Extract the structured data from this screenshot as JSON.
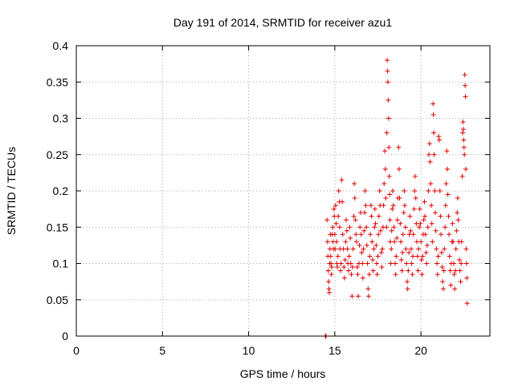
{
  "chart_data": {
    "type": "scatter",
    "title": "Day 191 of 2014, SRMTID for receiver azu1",
    "xlabel": "GPS time / hours",
    "ylabel": "SRMTID / TECUs",
    "xlim": [
      0,
      24
    ],
    "ylim": [
      0,
      0.4
    ],
    "xticks": [
      0,
      5,
      10,
      15,
      20
    ],
    "xtick_labels": [
      "0",
      "5",
      "10",
      "15",
      "20"
    ],
    "yticks": [
      0,
      0.05,
      0.1,
      0.15,
      0.2,
      0.25,
      0.3,
      0.35,
      0.4
    ],
    "ytick_labels": [
      "0",
      "0.05",
      "0.1",
      "0.15",
      "0.2",
      "0.25",
      "0.3",
      "0.35",
      "0.4"
    ],
    "grid": true,
    "marker": "+",
    "color": "#e00000",
    "series": [
      {
        "name": "SRMTID",
        "points": [
          [
            14.45,
            0.0
          ],
          [
            14.47,
            0.0
          ],
          [
            14.49,
            0.0
          ],
          [
            14.55,
            0.16
          ],
          [
            14.58,
            0.13
          ],
          [
            14.6,
            0.11
          ],
          [
            14.62,
            0.09
          ],
          [
            14.64,
            0.075
          ],
          [
            14.66,
            0.065
          ],
          [
            14.68,
            0.06
          ],
          [
            14.7,
            0.1
          ],
          [
            14.72,
            0.12
          ],
          [
            14.74,
            0.14
          ],
          [
            14.76,
            0.11
          ],
          [
            14.78,
            0.1
          ],
          [
            14.8,
            0.085
          ],
          [
            14.82,
            0.095
          ],
          [
            14.85,
            0.14
          ],
          [
            14.88,
            0.15
          ],
          [
            14.9,
            0.13
          ],
          [
            14.92,
            0.12
          ],
          [
            14.95,
            0.175
          ],
          [
            14.97,
            0.165
          ],
          [
            15.0,
            0.14
          ],
          [
            15.02,
            0.12
          ],
          [
            15.05,
            0.18
          ],
          [
            15.08,
            0.155
          ],
          [
            15.1,
            0.13
          ],
          [
            15.12,
            0.1
          ],
          [
            15.15,
            0.095
          ],
          [
            15.18,
            0.11
          ],
          [
            15.2,
            0.165
          ],
          [
            15.23,
            0.2
          ],
          [
            15.26,
            0.185
          ],
          [
            15.28,
            0.15
          ],
          [
            15.3,
            0.12
          ],
          [
            15.33,
            0.09
          ],
          [
            15.36,
            0.1
          ],
          [
            15.4,
            0.215
          ],
          [
            15.43,
            0.185
          ],
          [
            15.46,
            0.14
          ],
          [
            15.5,
            0.12
          ],
          [
            15.53,
            0.095
          ],
          [
            15.56,
            0.08
          ],
          [
            15.6,
            0.105
          ],
          [
            15.63,
            0.13
          ],
          [
            15.66,
            0.16
          ],
          [
            15.7,
            0.145
          ],
          [
            15.73,
            0.12
          ],
          [
            15.76,
            0.1
          ],
          [
            15.8,
            0.09
          ],
          [
            15.83,
            0.11
          ],
          [
            15.86,
            0.15
          ],
          [
            15.9,
            0.135
          ],
          [
            15.93,
            0.1
          ],
          [
            15.96,
            0.085
          ],
          [
            16.0,
            0.055
          ],
          [
            16.03,
            0.095
          ],
          [
            16.06,
            0.12
          ],
          [
            16.1,
            0.165
          ],
          [
            16.13,
            0.21
          ],
          [
            16.16,
            0.19
          ],
          [
            16.2,
            0.16
          ],
          [
            16.23,
            0.14
          ],
          [
            16.26,
            0.13
          ],
          [
            16.3,
            0.095
          ],
          [
            16.33,
            0.085
          ],
          [
            16.36,
            0.055
          ],
          [
            16.4,
            0.1
          ],
          [
            16.43,
            0.125
          ],
          [
            16.46,
            0.15
          ],
          [
            16.5,
            0.17
          ],
          [
            16.53,
            0.14
          ],
          [
            16.56,
            0.115
          ],
          [
            16.6,
            0.1
          ],
          [
            16.63,
            0.08
          ],
          [
            16.66,
            0.12
          ],
          [
            16.7,
            0.145
          ],
          [
            16.73,
            0.17
          ],
          [
            16.76,
            0.2
          ],
          [
            16.8,
            0.18
          ],
          [
            16.83,
            0.15
          ],
          [
            16.86,
            0.125
          ],
          [
            16.9,
            0.1
          ],
          [
            16.93,
            0.065
          ],
          [
            16.96,
            0.055
          ],
          [
            17.0,
            0.085
          ],
          [
            17.03,
            0.11
          ],
          [
            17.06,
            0.14
          ],
          [
            17.1,
            0.18
          ],
          [
            17.13,
            0.165
          ],
          [
            17.16,
            0.13
          ],
          [
            17.2,
            0.105
          ],
          [
            17.23,
            0.09
          ],
          [
            17.26,
            0.12
          ],
          [
            17.3,
            0.15
          ],
          [
            17.33,
            0.175
          ],
          [
            17.36,
            0.155
          ],
          [
            17.4,
            0.125
          ],
          [
            17.43,
            0.1
          ],
          [
            17.46,
            0.085
          ],
          [
            17.5,
            0.11
          ],
          [
            17.53,
            0.14
          ],
          [
            17.56,
            0.165
          ],
          [
            17.6,
            0.2
          ],
          [
            17.63,
            0.18
          ],
          [
            17.66,
            0.145
          ],
          [
            17.7,
            0.115
          ],
          [
            17.73,
            0.095
          ],
          [
            17.76,
            0.12
          ],
          [
            17.8,
            0.15
          ],
          [
            17.83,
            0.18
          ],
          [
            17.86,
            0.21
          ],
          [
            17.9,
            0.255
          ],
          [
            17.93,
            0.23
          ],
          [
            17.96,
            0.19
          ],
          [
            18.0,
            0.15
          ],
          [
            18.02,
            0.28
          ],
          [
            18.04,
            0.38
          ],
          [
            18.06,
            0.365
          ],
          [
            18.08,
            0.35
          ],
          [
            18.1,
            0.325
          ],
          [
            18.12,
            0.3
          ],
          [
            18.14,
            0.26
          ],
          [
            18.16,
            0.22
          ],
          [
            18.18,
            0.195
          ],
          [
            18.2,
            0.16
          ],
          [
            18.22,
            0.13
          ],
          [
            18.25,
            0.1
          ],
          [
            18.28,
            0.12
          ],
          [
            18.3,
            0.145
          ],
          [
            18.33,
            0.175
          ],
          [
            18.36,
            0.2
          ],
          [
            18.4,
            0.18
          ],
          [
            18.43,
            0.15
          ],
          [
            18.46,
            0.13
          ],
          [
            18.5,
            0.1
          ],
          [
            18.53,
            0.085
          ],
          [
            18.56,
            0.11
          ],
          [
            18.6,
            0.135
          ],
          [
            18.63,
            0.16
          ],
          [
            18.66,
            0.19
          ],
          [
            18.7,
            0.26
          ],
          [
            18.73,
            0.23
          ],
          [
            18.76,
            0.19
          ],
          [
            18.8,
            0.155
          ],
          [
            18.83,
            0.13
          ],
          [
            18.86,
            0.105
          ],
          [
            18.9,
            0.09
          ],
          [
            18.93,
            0.115
          ],
          [
            18.96,
            0.14
          ],
          [
            19.0,
            0.17
          ],
          [
            19.03,
            0.2
          ],
          [
            19.06,
            0.18
          ],
          [
            19.1,
            0.15
          ],
          [
            19.13,
            0.12
          ],
          [
            19.16,
            0.1
          ],
          [
            19.2,
            0.075
          ],
          [
            19.23,
            0.065
          ],
          [
            19.26,
            0.09
          ],
          [
            19.3,
            0.115
          ],
          [
            19.33,
            0.14
          ],
          [
            19.36,
            0.165
          ],
          [
            19.4,
            0.145
          ],
          [
            19.43,
            0.12
          ],
          [
            19.46,
            0.1
          ],
          [
            19.5,
            0.085
          ],
          [
            19.53,
            0.11
          ],
          [
            19.56,
            0.14
          ],
          [
            19.6,
            0.175
          ],
          [
            19.63,
            0.2
          ],
          [
            19.66,
            0.22
          ],
          [
            19.7,
            0.19
          ],
          [
            19.73,
            0.155
          ],
          [
            19.76,
            0.13
          ],
          [
            19.8,
            0.11
          ],
          [
            19.83,
            0.09
          ],
          [
            19.86,
            0.12
          ],
          [
            19.9,
            0.15
          ],
          [
            19.93,
            0.175
          ],
          [
            19.96,
            0.155
          ],
          [
            20.0,
            0.13
          ],
          [
            20.03,
            0.105
          ],
          [
            20.06,
            0.085
          ],
          [
            20.1,
            0.11
          ],
          [
            20.13,
            0.14
          ],
          [
            20.16,
            0.16
          ],
          [
            20.2,
            0.185
          ],
          [
            20.23,
            0.165
          ],
          [
            20.26,
            0.14
          ],
          [
            20.3,
            0.115
          ],
          [
            20.33,
            0.1
          ],
          [
            20.36,
            0.125
          ],
          [
            20.4,
            0.15
          ],
          [
            20.43,
            0.2
          ],
          [
            20.46,
            0.25
          ],
          [
            20.5,
            0.265
          ],
          [
            20.53,
            0.24
          ],
          [
            20.56,
            0.21
          ],
          [
            20.6,
            0.18
          ],
          [
            20.63,
            0.155
          ],
          [
            20.66,
            0.13
          ],
          [
            20.7,
            0.32
          ],
          [
            20.72,
            0.305
          ],
          [
            20.74,
            0.28
          ],
          [
            20.76,
            0.25
          ],
          [
            20.8,
            0.2
          ],
          [
            20.83,
            0.17
          ],
          [
            20.86,
            0.145
          ],
          [
            20.9,
            0.12
          ],
          [
            20.93,
            0.1
          ],
          [
            20.96,
            0.085
          ],
          [
            21.0,
            0.11
          ],
          [
            21.03,
            0.275
          ],
          [
            21.06,
            0.27
          ],
          [
            21.1,
            0.2
          ],
          [
            21.13,
            0.165
          ],
          [
            21.16,
            0.14
          ],
          [
            21.2,
            0.115
          ],
          [
            21.23,
            0.095
          ],
          [
            21.26,
            0.075
          ],
          [
            21.3,
            0.065
          ],
          [
            21.33,
            0.09
          ],
          [
            21.36,
            0.12
          ],
          [
            21.4,
            0.15
          ],
          [
            21.43,
            0.18
          ],
          [
            21.46,
            0.21
          ],
          [
            21.5,
            0.255
          ],
          [
            21.53,
            0.23
          ],
          [
            21.56,
            0.195
          ],
          [
            21.6,
            0.165
          ],
          [
            21.63,
            0.14
          ],
          [
            21.66,
            0.11
          ],
          [
            21.7,
            0.09
          ],
          [
            21.73,
            0.07
          ],
          [
            21.76,
            0.1
          ],
          [
            21.8,
            0.13
          ],
          [
            21.83,
            0.155
          ],
          [
            21.86,
            0.13
          ],
          [
            21.9,
            0.1
          ],
          [
            21.93,
            0.085
          ],
          [
            21.96,
            0.065
          ],
          [
            22.0,
            0.09
          ],
          [
            22.03,
            0.12
          ],
          [
            22.06,
            0.145
          ],
          [
            22.1,
            0.17
          ],
          [
            22.13,
            0.19
          ],
          [
            22.16,
            0.16
          ],
          [
            22.2,
            0.13
          ],
          [
            22.23,
            0.105
          ],
          [
            22.26,
            0.09
          ],
          [
            22.3,
            0.075
          ],
          [
            22.33,
            0.1
          ],
          [
            22.36,
            0.13
          ],
          [
            22.4,
            0.22
          ],
          [
            22.42,
            0.28
          ],
          [
            22.44,
            0.295
          ],
          [
            22.46,
            0.285
          ],
          [
            22.48,
            0.27
          ],
          [
            22.5,
            0.26
          ],
          [
            22.52,
            0.25
          ],
          [
            22.54,
            0.36
          ],
          [
            22.56,
            0.345
          ],
          [
            22.58,
            0.33
          ],
          [
            22.6,
            0.23
          ],
          [
            22.62,
            0.12
          ],
          [
            22.64,
            0.1
          ],
          [
            22.66,
            0.08
          ],
          [
            22.68,
            0.045
          ]
        ]
      }
    ]
  }
}
